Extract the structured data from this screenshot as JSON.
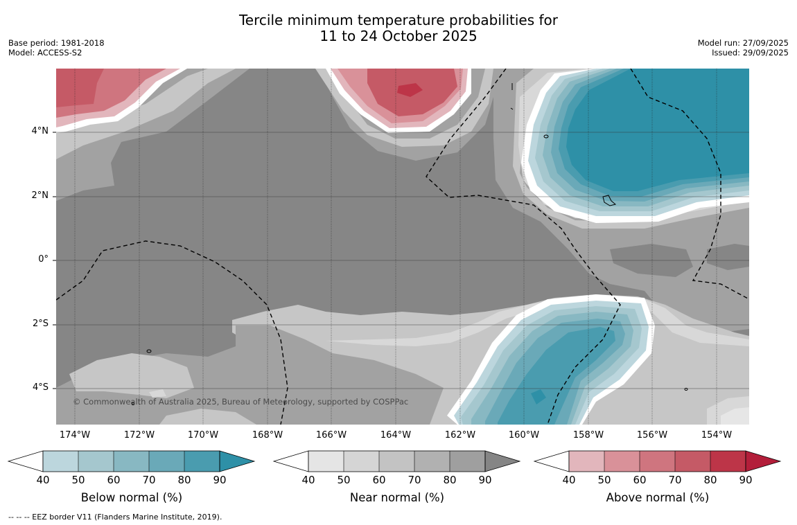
{
  "title": {
    "line1": "Tercile minimum temperature probabilities for",
    "line2": "11 to 24 October 2025"
  },
  "meta_left": {
    "base_period": "Base period: 1981-2018",
    "model": "Model: ACCESS-S2"
  },
  "meta_right": {
    "model_run": "Model run: 27/09/2025",
    "issued": "Issued: 29/09/2025"
  },
  "map": {
    "lat_labels": [
      "4°N",
      "2°N",
      "0°",
      "2°S",
      "4°S"
    ],
    "lon_labels": [
      "174°W",
      "172°W",
      "170°W",
      "168°W",
      "166°W",
      "164°W",
      "162°W",
      "160°W",
      "158°W",
      "156°W",
      "154°W"
    ],
    "copyright": "© Commonwealth of Australia 2025, Bureau of Meteorology, supported by COSPPac"
  },
  "colorbars": [
    {
      "title": "Below normal (%)",
      "ticks": [
        "40",
        "50",
        "60",
        "70",
        "80",
        "90"
      ],
      "colors": [
        "#ffffff",
        "#bcd6dd",
        "#a5c7ce",
        "#88b8c2",
        "#6aa9b8",
        "#4a9caf",
        "#2e90a7"
      ]
    },
    {
      "title": "Near normal (%)",
      "ticks": [
        "40",
        "50",
        "60",
        "70",
        "80",
        "90"
      ],
      "colors": [
        "#ffffff",
        "#e5e5e5",
        "#d5d5d5",
        "#c3c3c3",
        "#b1b1b1",
        "#9f9f9f",
        "#858585"
      ]
    },
    {
      "title": "Above normal (%)",
      "ticks": [
        "40",
        "50",
        "60",
        "70",
        "80",
        "90"
      ],
      "colors": [
        "#ffffff",
        "#e2b6bc",
        "#d99199",
        "#cf757f",
        "#c55a66",
        "#bd3548",
        "#b31e3a"
      ]
    }
  ],
  "footnote": "--  --  -- EEZ border V11 (Flanders Marine Institute, 2019)."
}
